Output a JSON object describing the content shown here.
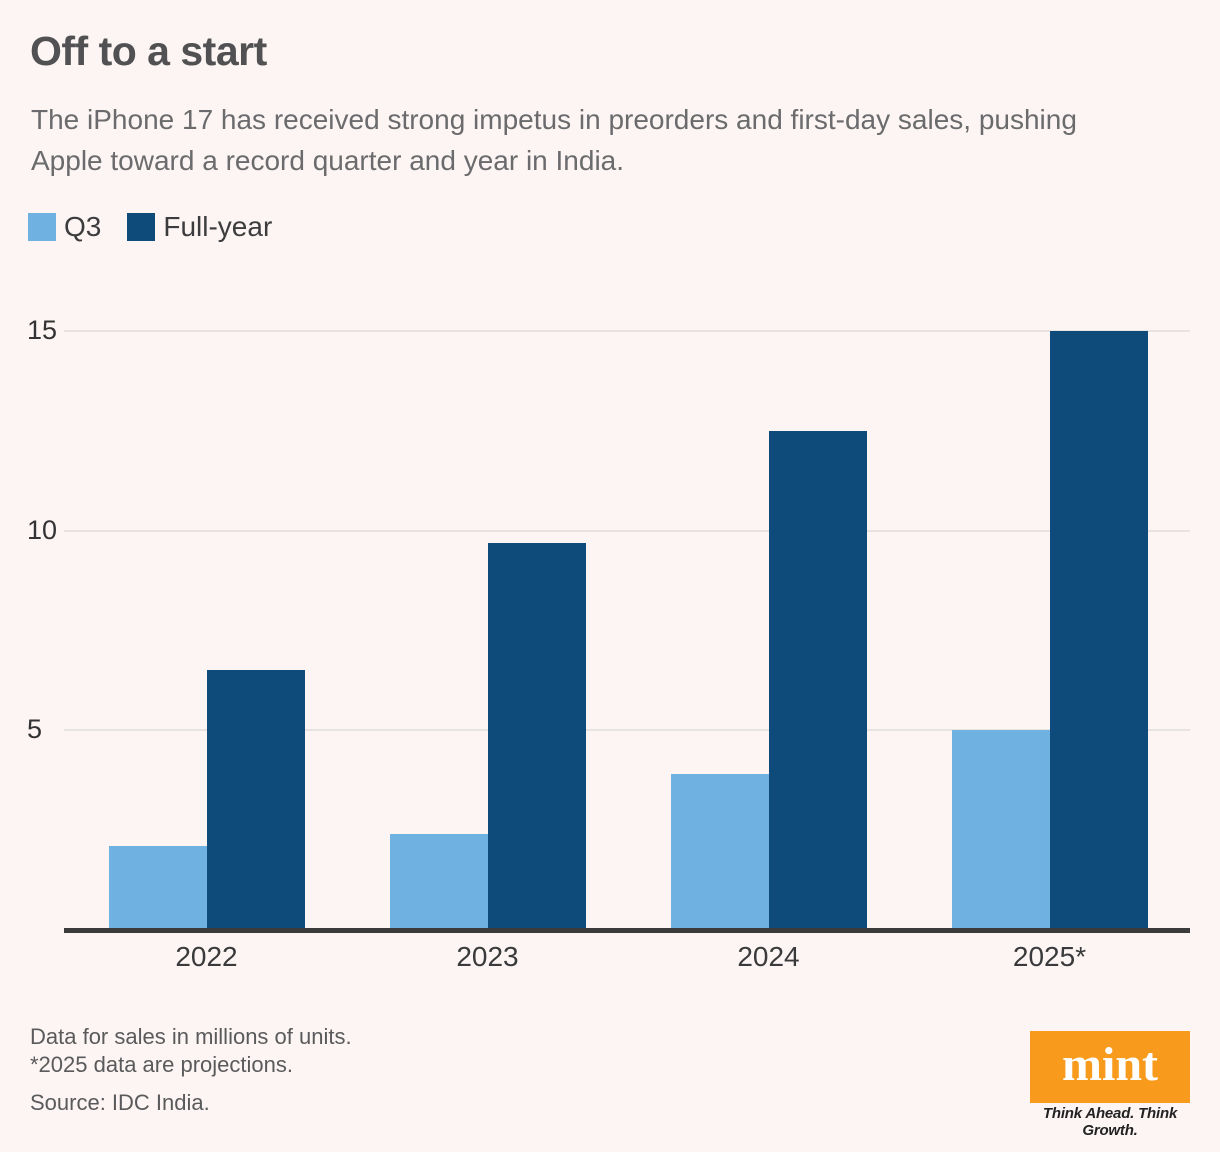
{
  "header": {
    "title": "Off to a start",
    "subtitle_line1": "The iPhone 17 has received strong impetus in preorders and first-day sales, pushing",
    "subtitle_line2": "Apple toward a record quarter and year in India."
  },
  "legend": [
    {
      "label": "Q3",
      "color": "#6fb1e0"
    },
    {
      "label": "Full-year",
      "color": "#0e4b7b"
    }
  ],
  "chart_data": {
    "type": "bar",
    "categories": [
      "2022",
      "2023",
      "2024",
      "2025*"
    ],
    "series": [
      {
        "name": "Q3",
        "color": "#6fb1e0",
        "values": [
          2.1,
          2.4,
          3.9,
          5.0
        ]
      },
      {
        "name": "Full-year",
        "color": "#0e4b7b",
        "values": [
          6.5,
          9.7,
          12.5,
          15.0
        ]
      }
    ],
    "title": "Off to a start",
    "xlabel": "",
    "ylabel": "Sales in millions of units",
    "ylim": [
      0,
      15
    ],
    "yticks": [
      5,
      10,
      15
    ],
    "grid": true,
    "legend_position": "top-left",
    "gridline_color": "#e6e3e1",
    "axis_color": "#3b3b3b"
  },
  "footer": {
    "note1": "Data for sales in millions of units.",
    "note2": "*2025 data are projections.",
    "source": "Source: IDC India.",
    "logo_text": "mint",
    "logo_tagline": "Think Ahead. Think Growth.",
    "logo_color": "#f89b1d"
  }
}
